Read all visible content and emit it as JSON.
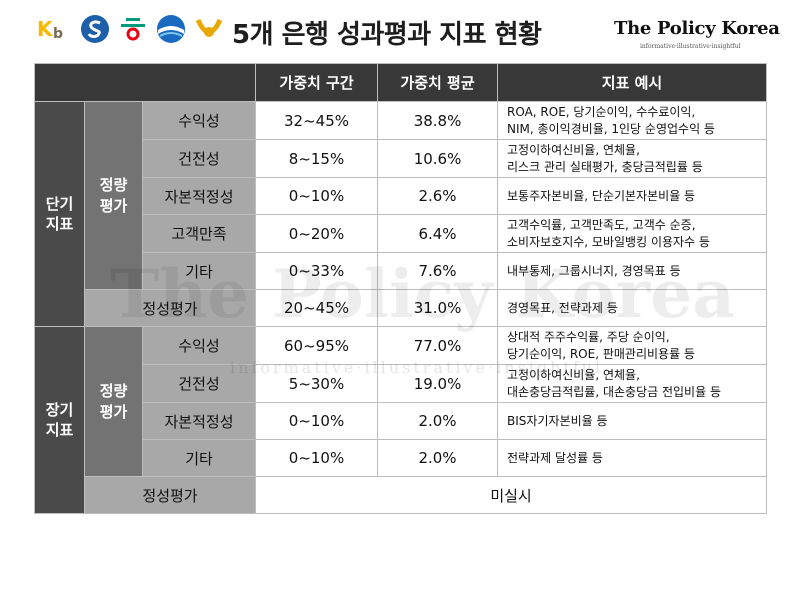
{
  "header": {
    "title": "5개 은행 성과평과 지표 현황",
    "brand": "The Policy Korea",
    "brand_sub": "informative·illustrative·insightful",
    "logos": [
      {
        "name": "kb-logo",
        "text": "KB",
        "color": "#f6b800"
      },
      {
        "name": "shinhan-logo",
        "text": "S",
        "color": "#1d5fa8"
      },
      {
        "name": "hana-logo",
        "text": "ㅎ",
        "color": "#009b7d"
      },
      {
        "name": "woori-logo",
        "text": "",
        "color": "#1a6bbf"
      },
      {
        "name": "nh-logo",
        "text": "",
        "color": "#e8a800"
      }
    ]
  },
  "table": {
    "headers": [
      "가중치 구간",
      "가중치 평균",
      "지표 예시"
    ],
    "groups": [
      {
        "term": "단기\n지표",
        "quant_label": "정량\n평가",
        "rows": [
          {
            "name": "수익성",
            "range": "32~45%",
            "avg": "38.8%",
            "examples": [
              "ROA, ROE, 당기순이익, 수수료이익,",
              "NIM, 총이익경비율, 1인당 순영업수익 등"
            ]
          },
          {
            "name": "건전성",
            "range": "8~15%",
            "avg": "10.6%",
            "examples": [
              "고정이하여신비율, 연체율,",
              "리스크 관리 실태평가, 충당금적립률 등"
            ]
          },
          {
            "name": "자본적정성",
            "range": "0~10%",
            "avg": "2.6%",
            "examples": [
              "보통주자본비율, 단순기본자본비율 등"
            ]
          },
          {
            "name": "고객만족",
            "range": "0~20%",
            "avg": "6.4%",
            "examples": [
              "고객수익률, 고객만족도, 고객수 순증,",
              "소비자보호지수, 모바일뱅킹 이용자수 등"
            ]
          },
          {
            "name": "기타",
            "range": "0~33%",
            "avg": "7.6%",
            "examples": [
              "내부통제, 그룹시너지, 경영목표 등"
            ]
          }
        ],
        "qual": {
          "name": "정성평가",
          "range": "20~45%",
          "avg": "31.0%",
          "examples": [
            "경영목표, 전략과제 등"
          ]
        }
      },
      {
        "term": "장기\n지표",
        "quant_label": "정량\n평가",
        "rows": [
          {
            "name": "수익성",
            "range": "60~95%",
            "avg": "77.0%",
            "examples": [
              "상대적 주주수익률, 주당 순이익,",
              "당기순이익, ROE, 판매관리비용률 등"
            ]
          },
          {
            "name": "건전성",
            "range": "5~30%",
            "avg": "19.0%",
            "examples": [
              "고정이하여신비율, 연체율,",
              "대손충당금적립률, 대손충당금 전입비율 등"
            ]
          },
          {
            "name": "자본적정성",
            "range": "0~10%",
            "avg": "2.0%",
            "examples": [
              "BIS자기자본비율 등"
            ]
          },
          {
            "name": "기타",
            "range": "0~10%",
            "avg": "2.0%",
            "examples": [
              "전략과제 달성률 등"
            ]
          }
        ],
        "qual": {
          "name": "정성평가",
          "merged": "미실시"
        }
      }
    ]
  },
  "watermark": {
    "main": "The Policy Korea",
    "sub": "informative·illustrative·insightful"
  }
}
